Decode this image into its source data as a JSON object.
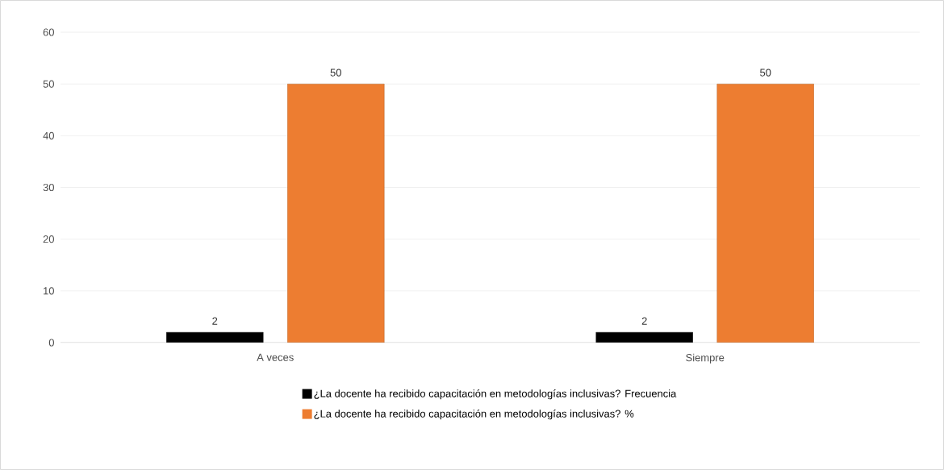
{
  "chart_data": {
    "type": "bar",
    "categories": [
      "A veces",
      "Siempre"
    ],
    "series": [
      {
        "name": "¿La docente ha recibido capacitación en metodologías inclusivas? Frecuencia",
        "color": "#000000",
        "values": [
          2,
          2
        ]
      },
      {
        "name": "¿La docente ha recibido capacitación en metodologías inclusivas? %",
        "color": "#ed7d31",
        "values": [
          50,
          50
        ]
      }
    ],
    "ylim": [
      0,
      60
    ],
    "yticks": [
      0,
      10,
      20,
      30,
      40,
      50,
      60
    ],
    "grid": "y",
    "legend": "bottom",
    "data_labels": true
  }
}
